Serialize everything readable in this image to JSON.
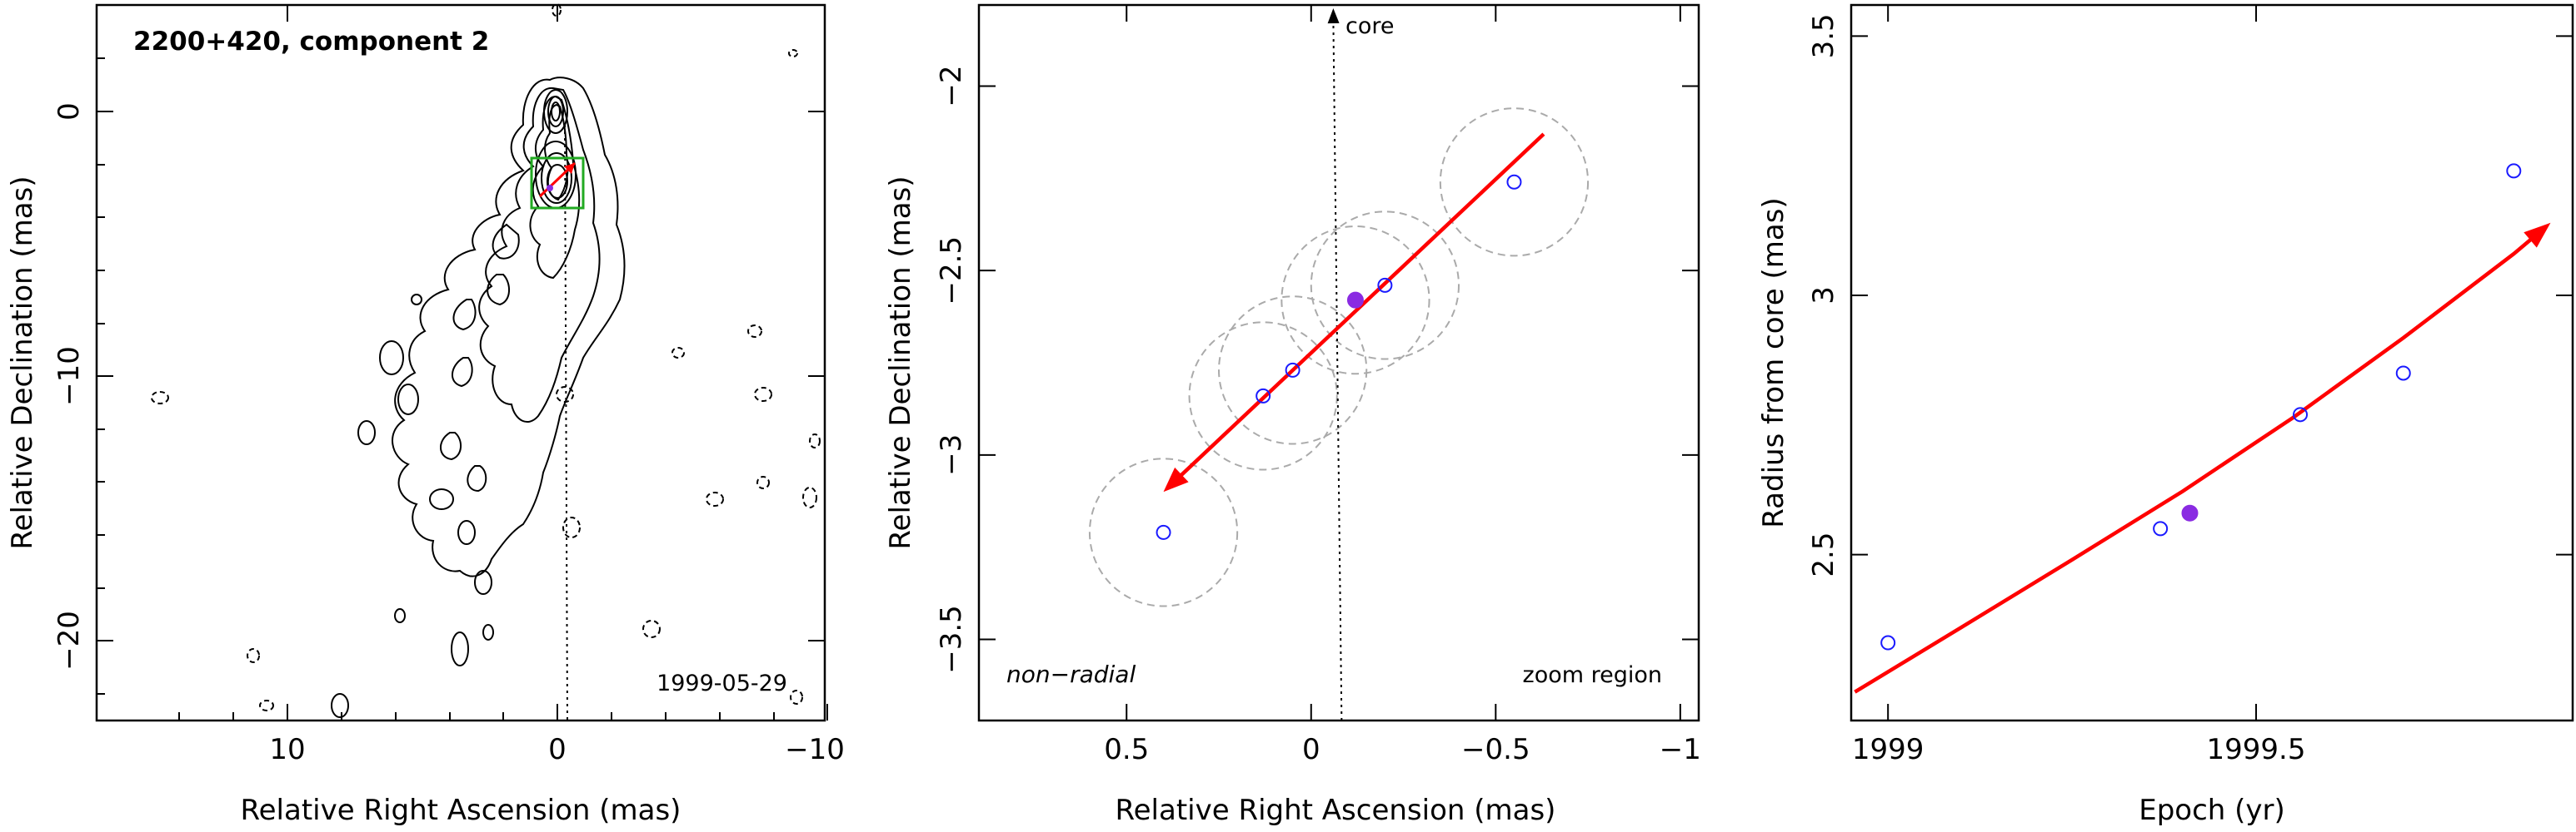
{
  "chart_data": [
    {
      "type": "scatter",
      "kind": "contour map",
      "title": "2200+420, component 2",
      "xlabel": "Relative Right Ascension (mas)",
      "ylabel": "Relative Declination (mas)",
      "xlim": [
        17,
        -10
      ],
      "ylim": [
        -23,
        4
      ],
      "xticks": [
        10,
        0,
        -10
      ],
      "yticks": [
        0,
        -10,
        -20
      ],
      "xtick_labels": [
        "10",
        "0",
        "−10"
      ],
      "ytick_labels": [
        "0",
        "−10",
        "−20"
      ],
      "epoch_label": "1999-05-29",
      "core_position": [
        0,
        0
      ],
      "component_position": [
        0.3,
        -2.9
      ],
      "zoom_box": {
        "x": [
          1.0,
          -1.0
        ],
        "y": [
          -1.8,
          -3.8
        ]
      },
      "ridge_line_x": -0.35
    },
    {
      "type": "scatter",
      "xlabel": "Relative Right Ascension (mas)",
      "ylabel": "Relative Declination (mas)",
      "xlim": [
        0.9,
        -1.05
      ],
      "ylim": [
        -3.72,
        -1.78
      ],
      "xticks": [
        0.5,
        0,
        -0.5,
        -1
      ],
      "yticks": [
        -2,
        -2.5,
        -3,
        -3.5
      ],
      "xtick_labels": [
        "0.5",
        "0",
        "−0.5",
        "−1"
      ],
      "ytick_labels": [
        "−2",
        "−2.5",
        "−3",
        "−3.5"
      ],
      "core_label": "core",
      "annotation_left": "non−radial",
      "annotation_right": "zoom region",
      "core_direction_x": -0.06,
      "series": [
        {
          "marker": "open-circle",
          "color": "#1a1aff",
          "points": [
            [
              0.4,
              -3.21
            ],
            [
              0.13,
              -2.84
            ],
            [
              0.05,
              -2.77
            ],
            [
              -0.2,
              -2.54
            ],
            [
              -0.55,
              -2.26
            ]
          ]
        },
        {
          "marker": "filled-circle",
          "color": "#8a2be2",
          "points": [
            [
              -0.12,
              -2.58
            ]
          ]
        }
      ],
      "error_circles": [
        {
          "x": 0.4,
          "y": -3.21,
          "r": 0.2
        },
        {
          "x": 0.13,
          "y": -2.84,
          "r": 0.2
        },
        {
          "x": 0.05,
          "y": -2.77,
          "r": 0.2
        },
        {
          "x": -0.12,
          "y": -2.58,
          "r": 0.2
        },
        {
          "x": -0.2,
          "y": -2.54,
          "r": 0.2
        },
        {
          "x": -0.55,
          "y": -2.26,
          "r": 0.2
        }
      ],
      "fit_arrow": {
        "color": "#ff0000",
        "from": [
          -0.63,
          -2.13
        ],
        "to": [
          0.4,
          -3.1
        ]
      }
    },
    {
      "type": "scatter",
      "xlabel": "Epoch (yr)",
      "ylabel": "Radius from core (mas)",
      "xlim": [
        1998.95,
        1999.93
      ],
      "ylim": [
        2.18,
        3.56
      ],
      "xticks": [
        1999,
        1999.5
      ],
      "yticks": [
        2.5,
        3,
        3.5
      ],
      "xtick_labels": [
        "1999",
        "1999.5"
      ],
      "ytick_labels": [
        "2.5",
        "3",
        "3.5"
      ],
      "series": [
        {
          "marker": "open-circle",
          "color": "#1a1aff",
          "points": [
            [
              1999.0,
              2.33
            ],
            [
              1999.37,
              2.55
            ],
            [
              1999.56,
              2.77
            ],
            [
              1999.7,
              2.85
            ],
            [
              1999.85,
              3.24
            ]
          ]
        },
        {
          "marker": "filled-circle",
          "color": "#8a2be2",
          "points": [
            [
              1999.41,
              2.58
            ]
          ]
        }
      ],
      "fit_curve": {
        "color": "#ff0000",
        "points": [
          [
            1998.955,
            2.235
          ],
          [
            1999.1,
            2.36
          ],
          [
            1999.25,
            2.49
          ],
          [
            1999.4,
            2.622
          ],
          [
            1999.55,
            2.764
          ],
          [
            1999.7,
            2.918
          ],
          [
            1999.85,
            3.08
          ],
          [
            1999.9,
            3.14
          ]
        ]
      }
    }
  ]
}
